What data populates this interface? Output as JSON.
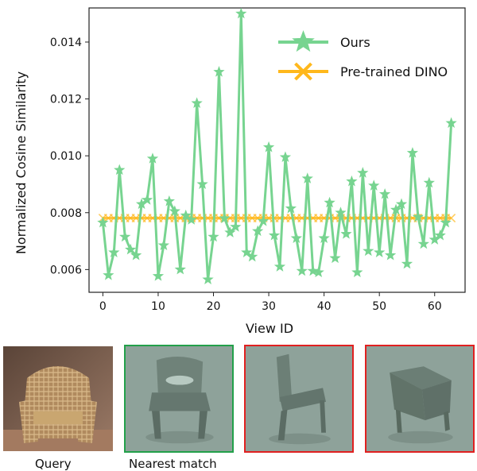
{
  "chart_data": {
    "type": "line",
    "xlabel": "View ID",
    "ylabel": "Normalized Cosine Similarity",
    "xlim": [
      -2.5,
      65.5
    ],
    "ylim": [
      0.0052,
      0.0152
    ],
    "xticks": [
      "0",
      "10",
      "20",
      "30",
      "40",
      "50",
      "60"
    ],
    "yticks": [
      "0.006",
      "0.008",
      "0.010",
      "0.012",
      "0.014"
    ],
    "grid": false,
    "legend": "top-right",
    "series": [
      {
        "name": "Ours",
        "color": "#77d490",
        "marker": "star",
        "values": [
          0.00765,
          0.0058,
          0.0066,
          0.0095,
          0.00715,
          0.0067,
          0.0065,
          0.0083,
          0.00845,
          0.0099,
          0.00577,
          0.00685,
          0.0084,
          0.00805,
          0.006,
          0.0079,
          0.00775,
          0.01185,
          0.009,
          0.00565,
          0.00715,
          0.01295,
          0.0078,
          0.0073,
          0.0075,
          0.015,
          0.0066,
          0.00645,
          0.00735,
          0.0077,
          0.0103,
          0.0072,
          0.0061,
          0.00995,
          0.00815,
          0.0071,
          0.00595,
          0.0092,
          0.00595,
          0.0059,
          0.0071,
          0.00835,
          0.0064,
          0.008,
          0.00725,
          0.0091,
          0.0059,
          0.0094,
          0.00665,
          0.00895,
          0.0066,
          0.00865,
          0.0065,
          0.0081,
          0.0083,
          0.0062,
          0.0101,
          0.00785,
          0.0069,
          0.00905,
          0.00705,
          0.0072,
          0.00765,
          0.01115
        ]
      },
      {
        "name": "Pre-trained DINO",
        "color": "#ffb81c",
        "marker": "x",
        "values": [
          0.00781,
          0.00781,
          0.00781,
          0.00781,
          0.00781,
          0.00781,
          0.00781,
          0.00781,
          0.00781,
          0.00781,
          0.00781,
          0.00781,
          0.00781,
          0.00781,
          0.00781,
          0.00781,
          0.00781,
          0.00781,
          0.00781,
          0.00781,
          0.00781,
          0.00781,
          0.00781,
          0.00781,
          0.00781,
          0.00781,
          0.00781,
          0.00781,
          0.00781,
          0.00781,
          0.00781,
          0.00781,
          0.00781,
          0.00781,
          0.00781,
          0.00781,
          0.00781,
          0.00781,
          0.00781,
          0.00781,
          0.00781,
          0.00781,
          0.00781,
          0.00781,
          0.00781,
          0.00781,
          0.00781,
          0.00781,
          0.00781,
          0.00781,
          0.00781,
          0.00781,
          0.00781,
          0.00781,
          0.00781,
          0.00781,
          0.00781,
          0.00781,
          0.00781,
          0.00781,
          0.00781,
          0.00781,
          0.00781,
          0.00781
        ]
      }
    ]
  },
  "panels": {
    "photo": {
      "caption": "Query",
      "bg": "#8a6a55"
    },
    "renders": [
      {
        "border_color": "#22a04a",
        "caption": "Nearest match",
        "bg": "#8ea29a"
      },
      {
        "border_color": "#e02020",
        "caption": "",
        "bg": "#8ea29a"
      },
      {
        "border_color": "#e02020",
        "caption": "",
        "bg": "#8ea29a"
      }
    ]
  }
}
